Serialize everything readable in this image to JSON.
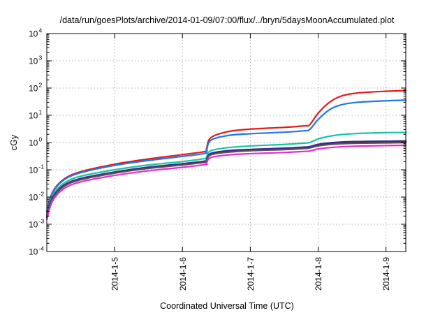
{
  "chart_data": {
    "type": "line",
    "title": "/data/run/goesPlots/archive/2014-01-09/07:00/flux/../bryn/5daysMoonAccumulated.plot",
    "xlabel": "Coordinated Universal Time (UTC)",
    "ylabel": "cGy",
    "yscale": "log",
    "ylim": [
      0.0001,
      10000
    ],
    "xlim": [
      "2014-01-04T00:00",
      "2014-01-09T07:00"
    ],
    "grid": true,
    "legend": "none",
    "y_ticks": [
      {
        "base": "10",
        "exp": "-4",
        "value": 0.0001
      },
      {
        "base": "10",
        "exp": "-3",
        "value": 0.001
      },
      {
        "base": "10",
        "exp": "-2",
        "value": 0.01
      },
      {
        "base": "10",
        "exp": "-1",
        "value": 0.1
      },
      {
        "base": "10",
        "exp": "0",
        "value": 1
      },
      {
        "base": "10",
        "exp": "1",
        "value": 10
      },
      {
        "base": "10",
        "exp": "2",
        "value": 100
      },
      {
        "base": "10",
        "exp": "3",
        "value": 1000
      },
      {
        "base": "10",
        "exp": "4",
        "value": 10000
      }
    ],
    "x_ticks": [
      {
        "label": "2014-1-5",
        "value": "2014-01-05T00:00"
      },
      {
        "label": "2014-1-6",
        "value": "2014-01-06T00:00"
      },
      {
        "label": "2014-1-7",
        "value": "2014-01-07T00:00"
      },
      {
        "label": "2014-1-8",
        "value": "2014-01-08T00:00"
      },
      {
        "label": "2014-1-9",
        "value": "2014-01-09T00:00"
      }
    ],
    "series": [
      {
        "color": "#e41a1c",
        "points": [
          [
            "2014-01-04T00:00",
            0.003
          ],
          [
            "2014-01-04T02:00",
            0.015
          ],
          [
            "2014-01-04T06:00",
            0.045
          ],
          [
            "2014-01-04T12:00",
            0.085
          ],
          [
            "2014-01-05T00:00",
            0.16
          ],
          [
            "2014-01-05T12:00",
            0.25
          ],
          [
            "2014-01-06T00:00",
            0.36
          ],
          [
            "2014-01-06T08:00",
            0.47
          ],
          [
            "2014-01-06T08:30",
            0.6
          ],
          [
            "2014-01-06T10:00",
            1.5
          ],
          [
            "2014-01-06T16:00",
            2.5
          ],
          [
            "2014-01-07T00:00",
            3.1
          ],
          [
            "2014-01-07T12:00",
            3.6
          ],
          [
            "2014-01-07T19:00",
            4.1
          ],
          [
            "2014-01-07T21:00",
            4.5
          ],
          [
            "2014-01-08T00:00",
            12
          ],
          [
            "2014-01-08T04:00",
            30
          ],
          [
            "2014-01-08T08:00",
            50
          ],
          [
            "2014-01-08T14:00",
            66
          ],
          [
            "2014-01-09T00:00",
            76
          ],
          [
            "2014-01-09T07:00",
            80
          ]
        ]
      },
      {
        "color": "#1e78e6",
        "points": [
          [
            "2014-01-04T00:00",
            0.003
          ],
          [
            "2014-01-04T02:00",
            0.014
          ],
          [
            "2014-01-04T06:00",
            0.042
          ],
          [
            "2014-01-04T12:00",
            0.078
          ],
          [
            "2014-01-05T00:00",
            0.145
          ],
          [
            "2014-01-05T12:00",
            0.22
          ],
          [
            "2014-01-06T00:00",
            0.31
          ],
          [
            "2014-01-06T08:00",
            0.4
          ],
          [
            "2014-01-06T08:30",
            0.5
          ],
          [
            "2014-01-06T10:00",
            1.2
          ],
          [
            "2014-01-06T16:00",
            1.8
          ],
          [
            "2014-01-07T00:00",
            2.1
          ],
          [
            "2014-01-07T12:00",
            2.4
          ],
          [
            "2014-01-07T19:00",
            2.7
          ],
          [
            "2014-01-07T21:00",
            3.0
          ],
          [
            "2014-01-08T00:00",
            7
          ],
          [
            "2014-01-08T04:00",
            16
          ],
          [
            "2014-01-08T08:00",
            24
          ],
          [
            "2014-01-08T14:00",
            30
          ],
          [
            "2014-01-09T00:00",
            34
          ],
          [
            "2014-01-09T07:00",
            36
          ]
        ]
      },
      {
        "color": "#17c4a0",
        "points": [
          [
            "2014-01-04T00:00",
            0.0025
          ],
          [
            "2014-01-04T02:00",
            0.011
          ],
          [
            "2014-01-04T06:00",
            0.032
          ],
          [
            "2014-01-04T12:00",
            0.058
          ],
          [
            "2014-01-05T00:00",
            0.1
          ],
          [
            "2014-01-05T12:00",
            0.15
          ],
          [
            "2014-01-06T00:00",
            0.2
          ],
          [
            "2014-01-06T08:00",
            0.26
          ],
          [
            "2014-01-06T08:30",
            0.3
          ],
          [
            "2014-01-06T10:00",
            0.5
          ],
          [
            "2014-01-06T16:00",
            0.65
          ],
          [
            "2014-01-07T00:00",
            0.75
          ],
          [
            "2014-01-07T12:00",
            0.85
          ],
          [
            "2014-01-07T19:00",
            0.95
          ],
          [
            "2014-01-07T21:00",
            1.0
          ],
          [
            "2014-01-08T00:00",
            1.35
          ],
          [
            "2014-01-08T04:00",
            1.7
          ],
          [
            "2014-01-08T08:00",
            1.95
          ],
          [
            "2014-01-08T14:00",
            2.15
          ],
          [
            "2014-01-09T00:00",
            2.3
          ],
          [
            "2014-01-09T07:00",
            2.35
          ]
        ]
      },
      {
        "color": "#7a1515",
        "points": [
          [
            "2014-01-04T00:00",
            0.002
          ],
          [
            "2014-01-04T02:00",
            0.009
          ],
          [
            "2014-01-04T06:00",
            0.026
          ],
          [
            "2014-01-04T12:00",
            0.046
          ],
          [
            "2014-01-05T00:00",
            0.08
          ],
          [
            "2014-01-05T12:00",
            0.12
          ],
          [
            "2014-01-06T00:00",
            0.16
          ],
          [
            "2014-01-06T08:00",
            0.2
          ],
          [
            "2014-01-06T08:30",
            0.23
          ],
          [
            "2014-01-06T10:00",
            0.38
          ],
          [
            "2014-01-06T16:00",
            0.47
          ],
          [
            "2014-01-07T00:00",
            0.53
          ],
          [
            "2014-01-07T12:00",
            0.59
          ],
          [
            "2014-01-07T19:00",
            0.64
          ],
          [
            "2014-01-07T21:00",
            0.67
          ],
          [
            "2014-01-08T00:00",
            0.8
          ],
          [
            "2014-01-08T04:00",
            0.9
          ],
          [
            "2014-01-08T08:00",
            0.96
          ],
          [
            "2014-01-08T14:00",
            1.0
          ],
          [
            "2014-01-09T00:00",
            1.03
          ],
          [
            "2014-01-09T07:00",
            1.05
          ]
        ]
      },
      {
        "color": "#3a2a8c",
        "points": [
          [
            "2014-01-04T00:00",
            0.002
          ],
          [
            "2014-01-04T02:00",
            0.0095
          ],
          [
            "2014-01-04T06:00",
            0.027
          ],
          [
            "2014-01-04T12:00",
            0.048
          ],
          [
            "2014-01-05T00:00",
            0.083
          ],
          [
            "2014-01-05T12:00",
            0.125
          ],
          [
            "2014-01-06T00:00",
            0.167
          ],
          [
            "2014-01-06T08:00",
            0.21
          ],
          [
            "2014-01-06T08:30",
            0.24
          ],
          [
            "2014-01-06T10:00",
            0.4
          ],
          [
            "2014-01-06T16:00",
            0.5
          ],
          [
            "2014-01-07T00:00",
            0.56
          ],
          [
            "2014-01-07T12:00",
            0.62
          ],
          [
            "2014-01-07T19:00",
            0.68
          ],
          [
            "2014-01-07T21:00",
            0.71
          ],
          [
            "2014-01-08T00:00",
            0.86
          ],
          [
            "2014-01-08T04:00",
            0.97
          ],
          [
            "2014-01-08T08:00",
            1.04
          ],
          [
            "2014-01-08T14:00",
            1.09
          ],
          [
            "2014-01-09T00:00",
            1.12
          ],
          [
            "2014-01-09T07:00",
            1.14
          ]
        ]
      },
      {
        "color": "#555555",
        "points": [
          [
            "2014-01-04T00:00",
            0.0018
          ],
          [
            "2014-01-04T02:00",
            0.0085
          ],
          [
            "2014-01-04T06:00",
            0.024
          ],
          [
            "2014-01-04T12:00",
            0.043
          ],
          [
            "2014-01-05T00:00",
            0.075
          ],
          [
            "2014-01-05T12:00",
            0.112
          ],
          [
            "2014-01-06T00:00",
            0.15
          ],
          [
            "2014-01-06T08:00",
            0.188
          ],
          [
            "2014-01-06T08:30",
            0.215
          ],
          [
            "2014-01-06T10:00",
            0.35
          ],
          [
            "2014-01-06T16:00",
            0.44
          ],
          [
            "2014-01-07T00:00",
            0.5
          ],
          [
            "2014-01-07T12:00",
            0.55
          ],
          [
            "2014-01-07T19:00",
            0.6
          ],
          [
            "2014-01-07T21:00",
            0.63
          ],
          [
            "2014-01-08T00:00",
            0.75
          ],
          [
            "2014-01-08T04:00",
            0.84
          ],
          [
            "2014-01-08T08:00",
            0.9
          ],
          [
            "2014-01-08T14:00",
            0.94
          ],
          [
            "2014-01-09T00:00",
            0.97
          ],
          [
            "2014-01-09T07:00",
            0.99
          ]
        ]
      },
      {
        "color": "#e82bd0",
        "points": [
          [
            "2014-01-04T00:00",
            0.0015
          ],
          [
            "2014-01-04T02:00",
            0.007
          ],
          [
            "2014-01-04T06:00",
            0.02
          ],
          [
            "2014-01-04T12:00",
            0.036
          ],
          [
            "2014-01-05T00:00",
            0.062
          ],
          [
            "2014-01-05T12:00",
            0.092
          ],
          [
            "2014-01-06T00:00",
            0.123
          ],
          [
            "2014-01-06T08:00",
            0.155
          ],
          [
            "2014-01-06T08:30",
            0.175
          ],
          [
            "2014-01-06T10:00",
            0.28
          ],
          [
            "2014-01-06T16:00",
            0.35
          ],
          [
            "2014-01-07T00:00",
            0.39
          ],
          [
            "2014-01-07T12:00",
            0.43
          ],
          [
            "2014-01-07T19:00",
            0.47
          ],
          [
            "2014-01-07T21:00",
            0.49
          ],
          [
            "2014-01-08T00:00",
            0.58
          ],
          [
            "2014-01-08T04:00",
            0.65
          ],
          [
            "2014-01-08T08:00",
            0.7
          ],
          [
            "2014-01-08T14:00",
            0.74
          ],
          [
            "2014-01-09T00:00",
            0.77
          ],
          [
            "2014-01-09T07:00",
            0.79
          ]
        ]
      }
    ]
  }
}
